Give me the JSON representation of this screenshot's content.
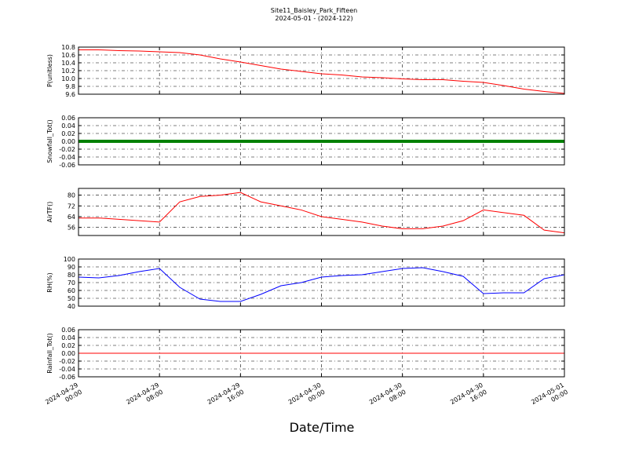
{
  "chart_data": [
    {
      "type": "line",
      "title": "Site11_Baisley_Park_Fifteen",
      "subtitle": "2024-05-01 - (2024-122)",
      "ylabel": "P(unitless)",
      "color": "#ff0000",
      "linewidth": 1,
      "grid": true,
      "xlim": [
        "2024-04-29 00:00",
        "2024-05-01 00:00"
      ],
      "x": [
        "2024-04-29 00:00",
        "2024-04-29 02:00",
        "2024-04-29 04:00",
        "2024-04-29 06:00",
        "2024-04-29 08:00",
        "2024-04-29 10:00",
        "2024-04-29 12:00",
        "2024-04-29 14:00",
        "2024-04-29 16:00",
        "2024-04-29 18:00",
        "2024-04-29 20:00",
        "2024-04-29 22:00",
        "2024-04-30 00:00",
        "2024-04-30 02:00",
        "2024-04-30 04:00",
        "2024-04-30 06:00",
        "2024-04-30 08:00",
        "2024-04-30 10:00",
        "2024-04-30 12:00",
        "2024-04-30 14:00",
        "2024-04-30 16:00",
        "2024-04-30 18:00",
        "2024-04-30 20:00",
        "2024-04-30 22:00",
        "2024-05-01 00:00"
      ],
      "values": [
        10.73,
        10.73,
        10.71,
        10.7,
        10.68,
        10.66,
        10.6,
        10.5,
        10.42,
        10.33,
        10.24,
        10.18,
        10.12,
        10.09,
        10.04,
        10.02,
        9.99,
        9.97,
        9.97,
        9.93,
        9.9,
        9.82,
        9.73,
        9.67,
        9.62
      ],
      "ylim": [
        9.6,
        10.8
      ],
      "yticks": [
        9.6,
        9.8,
        {
          "value": 10,
          "label": "10.0"
        },
        10.2,
        10.4,
        10.6,
        10.8
      ]
    },
    {
      "type": "line",
      "ylabel": "Snowfall_Tot()",
      "color": "#008000",
      "linewidth": 4,
      "grid": true,
      "xlim": [
        "2024-04-29 00:00",
        "2024-05-01 00:00"
      ],
      "x": [
        "2024-04-29 00:00",
        "2024-04-29 02:00",
        "2024-04-29 04:00",
        "2024-04-29 06:00",
        "2024-04-29 08:00",
        "2024-04-29 10:00",
        "2024-04-29 12:00",
        "2024-04-29 14:00",
        "2024-04-29 16:00",
        "2024-04-29 18:00",
        "2024-04-29 20:00",
        "2024-04-29 22:00",
        "2024-04-30 00:00",
        "2024-04-30 02:00",
        "2024-04-30 04:00",
        "2024-04-30 06:00",
        "2024-04-30 08:00",
        "2024-04-30 10:00",
        "2024-04-30 12:00",
        "2024-04-30 14:00",
        "2024-04-30 16:00",
        "2024-04-30 18:00",
        "2024-04-30 20:00",
        "2024-04-30 22:00",
        "2024-05-01 00:00"
      ],
      "values": [
        0,
        0,
        0,
        0,
        0,
        0,
        0,
        0,
        0,
        0,
        0,
        0,
        0,
        0,
        0,
        0,
        0,
        0,
        0,
        0,
        0,
        0,
        0,
        0,
        0
      ],
      "ylim": [
        -0.06,
        0.06
      ],
      "yticks": [
        -0.06,
        -0.04,
        -0.02,
        {
          "value": 0,
          "label": "0.00"
        },
        0.02,
        0.04,
        0.06
      ]
    },
    {
      "type": "line",
      "ylabel": "AirTF()",
      "color": "#ff0000",
      "linewidth": 1,
      "grid": true,
      "xlim": [
        "2024-04-29 00:00",
        "2024-05-01 00:00"
      ],
      "x": [
        "2024-04-29 00:00",
        "2024-04-29 02:00",
        "2024-04-29 04:00",
        "2024-04-29 06:00",
        "2024-04-29 08:00",
        "2024-04-29 10:00",
        "2024-04-29 12:00",
        "2024-04-29 14:00",
        "2024-04-29 16:00",
        "2024-04-29 18:00",
        "2024-04-29 20:00",
        "2024-04-29 22:00",
        "2024-04-30 00:00",
        "2024-04-30 02:00",
        "2024-04-30 04:00",
        "2024-04-30 06:00",
        "2024-04-30 08:00",
        "2024-04-30 10:00",
        "2024-04-30 12:00",
        "2024-04-30 14:00",
        "2024-04-30 16:00",
        "2024-04-30 18:00",
        "2024-04-30 20:00",
        "2024-04-30 22:00",
        "2024-05-01 00:00"
      ],
      "values": [
        63,
        63,
        62,
        61,
        60,
        75,
        79,
        80,
        82,
        75,
        72,
        69,
        64,
        62,
        60,
        57,
        55,
        55,
        57,
        61,
        69,
        67,
        65,
        54,
        52
      ],
      "ylim": [
        50,
        85
      ],
      "yticks": [
        56,
        64,
        72,
        80
      ]
    },
    {
      "type": "line",
      "ylabel": "RH(%)",
      "color": "#0000ff",
      "linewidth": 1,
      "grid": true,
      "xlim": [
        "2024-04-29 00:00",
        "2024-05-01 00:00"
      ],
      "x": [
        "2024-04-29 00:00",
        "2024-04-29 02:00",
        "2024-04-29 04:00",
        "2024-04-29 06:00",
        "2024-04-29 08:00",
        "2024-04-29 10:00",
        "2024-04-29 12:00",
        "2024-04-29 14:00",
        "2024-04-29 16:00",
        "2024-04-29 18:00",
        "2024-04-29 20:00",
        "2024-04-29 22:00",
        "2024-04-30 00:00",
        "2024-04-30 02:00",
        "2024-04-30 04:00",
        "2024-04-30 06:00",
        "2024-04-30 08:00",
        "2024-04-30 10:00",
        "2024-04-30 12:00",
        "2024-04-30 14:00",
        "2024-04-30 16:00",
        "2024-04-30 18:00",
        "2024-04-30 20:00",
        "2024-04-30 22:00",
        "2024-05-01 00:00"
      ],
      "values": [
        77,
        76,
        79,
        84,
        88,
        64,
        49,
        46,
        46,
        55,
        66,
        70,
        77,
        79,
        80,
        84,
        88,
        89,
        84,
        78,
        56,
        57,
        57,
        75,
        80
      ],
      "ylim": [
        40,
        100
      ],
      "yticks": [
        40,
        50,
        60,
        70,
        80,
        90,
        100
      ]
    },
    {
      "type": "line",
      "ylabel": "Rainfall_Tot()",
      "xlabel": "Date/Time",
      "color": "#ff0000",
      "linewidth": 1,
      "grid": true,
      "xlim": [
        "2024-04-29 00:00",
        "2024-05-01 00:00"
      ],
      "x": [
        "2024-04-29 00:00",
        "2024-04-29 02:00",
        "2024-04-29 04:00",
        "2024-04-29 06:00",
        "2024-04-29 08:00",
        "2024-04-29 10:00",
        "2024-04-29 12:00",
        "2024-04-29 14:00",
        "2024-04-29 16:00",
        "2024-04-29 18:00",
        "2024-04-29 20:00",
        "2024-04-29 22:00",
        "2024-04-30 00:00",
        "2024-04-30 02:00",
        "2024-04-30 04:00",
        "2024-04-30 06:00",
        "2024-04-30 08:00",
        "2024-04-30 10:00",
        "2024-04-30 12:00",
        "2024-04-30 14:00",
        "2024-04-30 16:00",
        "2024-04-30 18:00",
        "2024-04-30 20:00",
        "2024-04-30 22:00",
        "2024-05-01 00:00"
      ],
      "values": [
        0,
        0,
        0,
        0,
        0,
        0,
        0,
        0,
        0,
        0,
        0,
        0,
        0,
        0,
        0,
        0,
        0,
        0,
        0,
        0,
        0,
        0,
        0,
        0,
        0
      ],
      "ylim": [
        -0.06,
        0.06
      ],
      "yticks": [
        -0.06,
        -0.04,
        -0.02,
        {
          "value": 0,
          "label": "0.00"
        },
        0.02,
        0.04,
        0.06
      ],
      "xticks": [
        {
          "value": "2024-04-29 00:00",
          "label": [
            "2024-04-29",
            "00:00"
          ]
        },
        {
          "value": "2024-04-29 08:00",
          "label": [
            "2024-04-29",
            "08:00"
          ]
        },
        {
          "value": "2024-04-29 16:00",
          "label": [
            "2024-04-29",
            "16:00"
          ]
        },
        {
          "value": "2024-04-30 00:00",
          "label": [
            "2024-04-30",
            "00:00"
          ]
        },
        {
          "value": "2024-04-30 08:00",
          "label": [
            "2024-04-30",
            "08:00"
          ]
        },
        {
          "value": "2024-04-30 16:00",
          "label": [
            "2024-04-30",
            "16:00"
          ]
        },
        {
          "value": "2024-05-01 00:00",
          "label": [
            "2024-05-01",
            "00:00"
          ]
        }
      ]
    }
  ]
}
